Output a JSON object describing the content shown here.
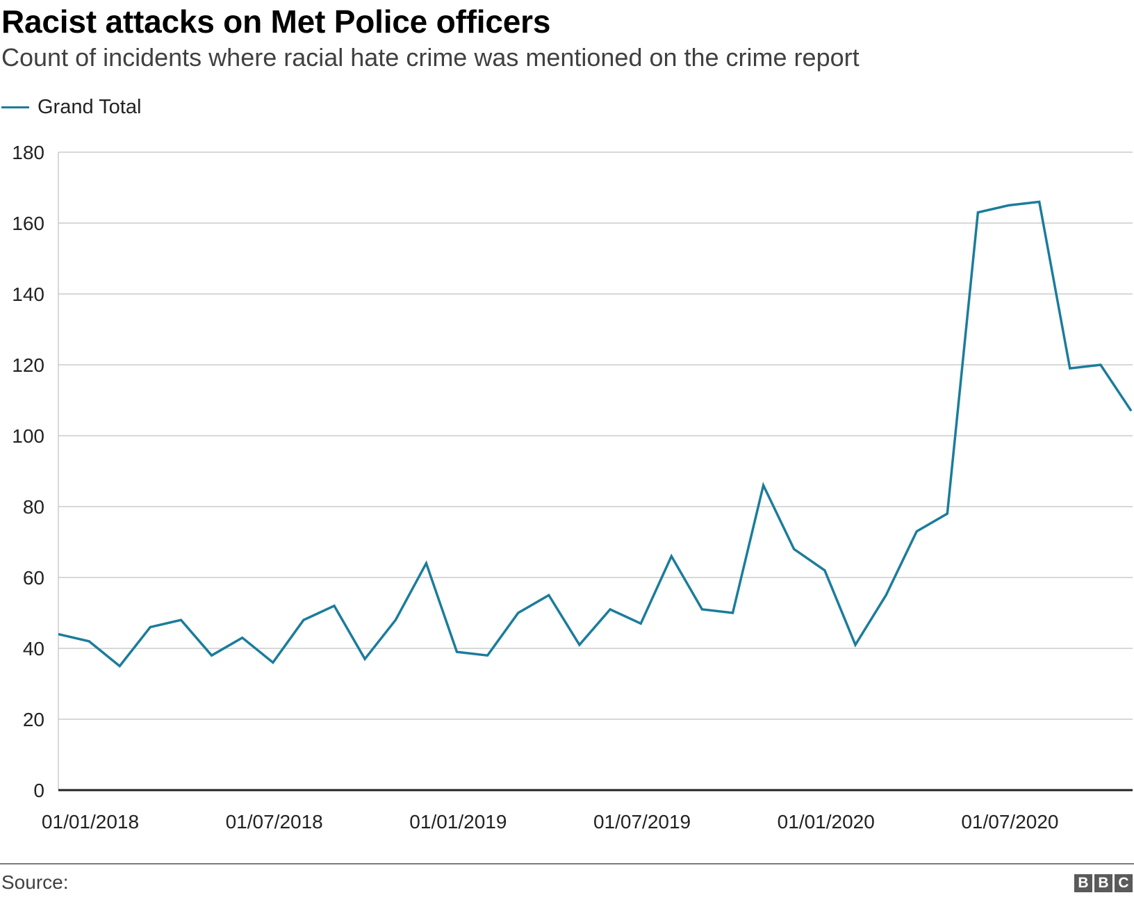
{
  "header": {
    "title": "Racist attacks on Met Police officers",
    "subtitle": "Count of incidents where racial hate crime was mentioned on the crime report"
  },
  "legend": {
    "items": [
      {
        "label": "Grand Total",
        "color": "#1b7c9c"
      }
    ]
  },
  "footer": {
    "source_label": "Source:",
    "logo_text": "BBC"
  },
  "chart_data": {
    "type": "line",
    "title": "Racist attacks on Met Police officers",
    "subtitle": "Count of incidents where racial hate crime was mentioned on the crime report",
    "xlabel": "",
    "ylabel": "",
    "ylim": [
      0,
      180
    ],
    "yticks": [
      0,
      20,
      40,
      60,
      80,
      100,
      120,
      140,
      160,
      180
    ],
    "xticks": [
      "01/01/2018",
      "01/07/2018",
      "01/01/2019",
      "01/07/2019",
      "01/01/2020",
      "01/07/2020"
    ],
    "x": [
      "01/01/2018",
      "01/02/2018",
      "01/03/2018",
      "01/04/2018",
      "01/05/2018",
      "01/06/2018",
      "01/07/2018",
      "01/08/2018",
      "01/09/2018",
      "01/10/2018",
      "01/11/2018",
      "01/12/2018",
      "01/01/2019",
      "01/02/2019",
      "01/03/2019",
      "01/04/2019",
      "01/05/2019",
      "01/06/2019",
      "01/07/2019",
      "01/08/2019",
      "01/09/2019",
      "01/10/2019",
      "01/11/2019",
      "01/12/2019",
      "01/01/2020",
      "01/02/2020",
      "01/03/2020",
      "01/04/2020",
      "01/05/2020",
      "01/06/2020",
      "01/07/2020",
      "01/08/2020",
      "01/09/2020",
      "01/10/2020",
      "01/11/2020",
      "01/12/2020"
    ],
    "series": [
      {
        "name": "Grand Total",
        "color": "#1b7c9c",
        "values": [
          44,
          42,
          35,
          46,
          48,
          38,
          43,
          36,
          48,
          52,
          37,
          48,
          64,
          39,
          38,
          50,
          55,
          41,
          51,
          47,
          66,
          51,
          50,
          86,
          68,
          62,
          41,
          55,
          73,
          78,
          163,
          165,
          166,
          119,
          120,
          107
        ]
      }
    ],
    "grid": true,
    "legend_position": "top-left"
  }
}
